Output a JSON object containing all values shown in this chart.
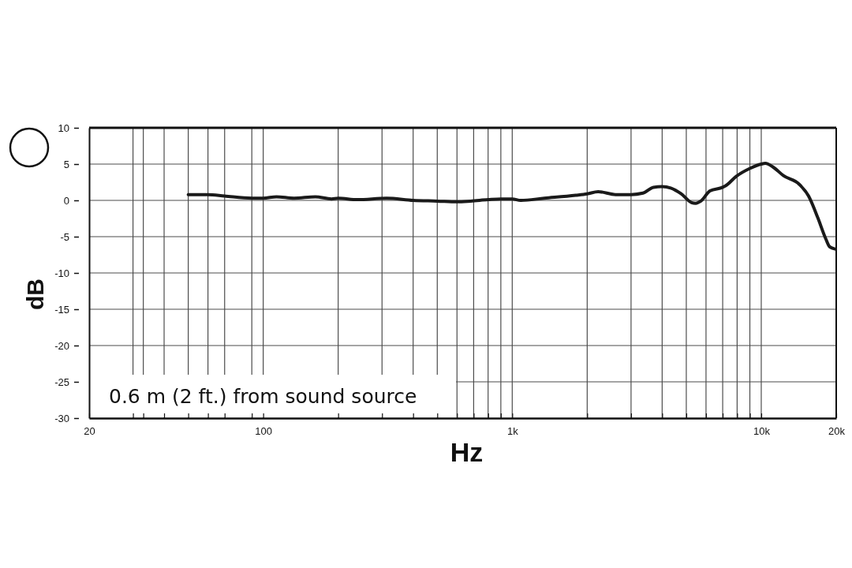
{
  "chart_data": {
    "type": "line",
    "xlabel": "Hz",
    "ylabel": "dB",
    "log": "x",
    "grid": true,
    "xlim": [
      20,
      20000
    ],
    "ylim": [
      -30,
      10
    ],
    "xticks": [
      20,
      {
        "value": 30,
        "label": null
      },
      {
        "value": 33,
        "label": null
      },
      {
        "value": 40,
        "label": null
      },
      {
        "value": 50,
        "label": null
      },
      {
        "value": 60,
        "label": null
      },
      {
        "value": 70,
        "label": null
      },
      {
        "value": 90,
        "label": null
      },
      100,
      {
        "value": 200,
        "label": null
      },
      {
        "value": 300,
        "label": null
      },
      {
        "value": 400,
        "label": null
      },
      {
        "value": 500,
        "label": null
      },
      {
        "value": 600,
        "label": null
      },
      {
        "value": 700,
        "label": null
      },
      {
        "value": 800,
        "label": null
      },
      {
        "value": 900,
        "label": null
      },
      {
        "value": 1000,
        "label": "1k"
      },
      {
        "value": 2000,
        "label": null
      },
      {
        "value": 3000,
        "label": null
      },
      {
        "value": 4000,
        "label": null
      },
      {
        "value": 5000,
        "label": null
      },
      {
        "value": 6000,
        "label": null
      },
      {
        "value": 7000,
        "label": null
      },
      {
        "value": 8000,
        "label": null
      },
      {
        "value": 9000,
        "label": null
      },
      {
        "value": 10000,
        "label": "10k"
      },
      {
        "value": 20000,
        "label": "20k"
      }
    ],
    "yticks": [
      10,
      5,
      0,
      -5,
      -10,
      -15,
      -20,
      -25,
      -30
    ],
    "annotations": [
      "0.6 m (2 ft.) from sound source"
    ],
    "x": [
      50,
      60,
      70,
      90,
      100,
      113,
      133,
      162,
      188,
      200,
      239,
      313,
      400,
      500,
      600,
      681,
      800,
      900,
      1000,
      1081,
      1346,
      1799,
      2000,
      2213,
      2600,
      3000,
      3350,
      3690,
      4000,
      4330,
      4770,
      5250,
      5450,
      5720,
      6220,
      7000,
      7190,
      7930,
      9000,
      10000,
      10380,
      11150,
      12280,
      14220,
      15490,
      16870,
      18160,
      18830,
      19770
    ],
    "series": [
      {
        "color": "#1a1a1a",
        "line_style": "solid",
        "values": [
          0.8,
          0.8,
          0.6,
          0.3,
          0.3,
          0.5,
          0.3,
          0.5,
          0.2,
          0.3,
          0.1,
          0.3,
          0,
          -0.1,
          -0.2,
          -0.1,
          0.1,
          0.2,
          0.2,
          0,
          0.3,
          0.7,
          0.9,
          1.2,
          0.8,
          0.8,
          1.0,
          1.8,
          1.9,
          1.7,
          0.9,
          -0.3,
          -0.4,
          -0.1,
          1.3,
          1.8,
          2.0,
          3.3,
          4.4,
          5.0,
          5.1,
          4.6,
          3.4,
          2.2,
          0.6,
          -2.4,
          -5.3,
          -6.4,
          -6.7
        ]
      }
    ]
  }
}
